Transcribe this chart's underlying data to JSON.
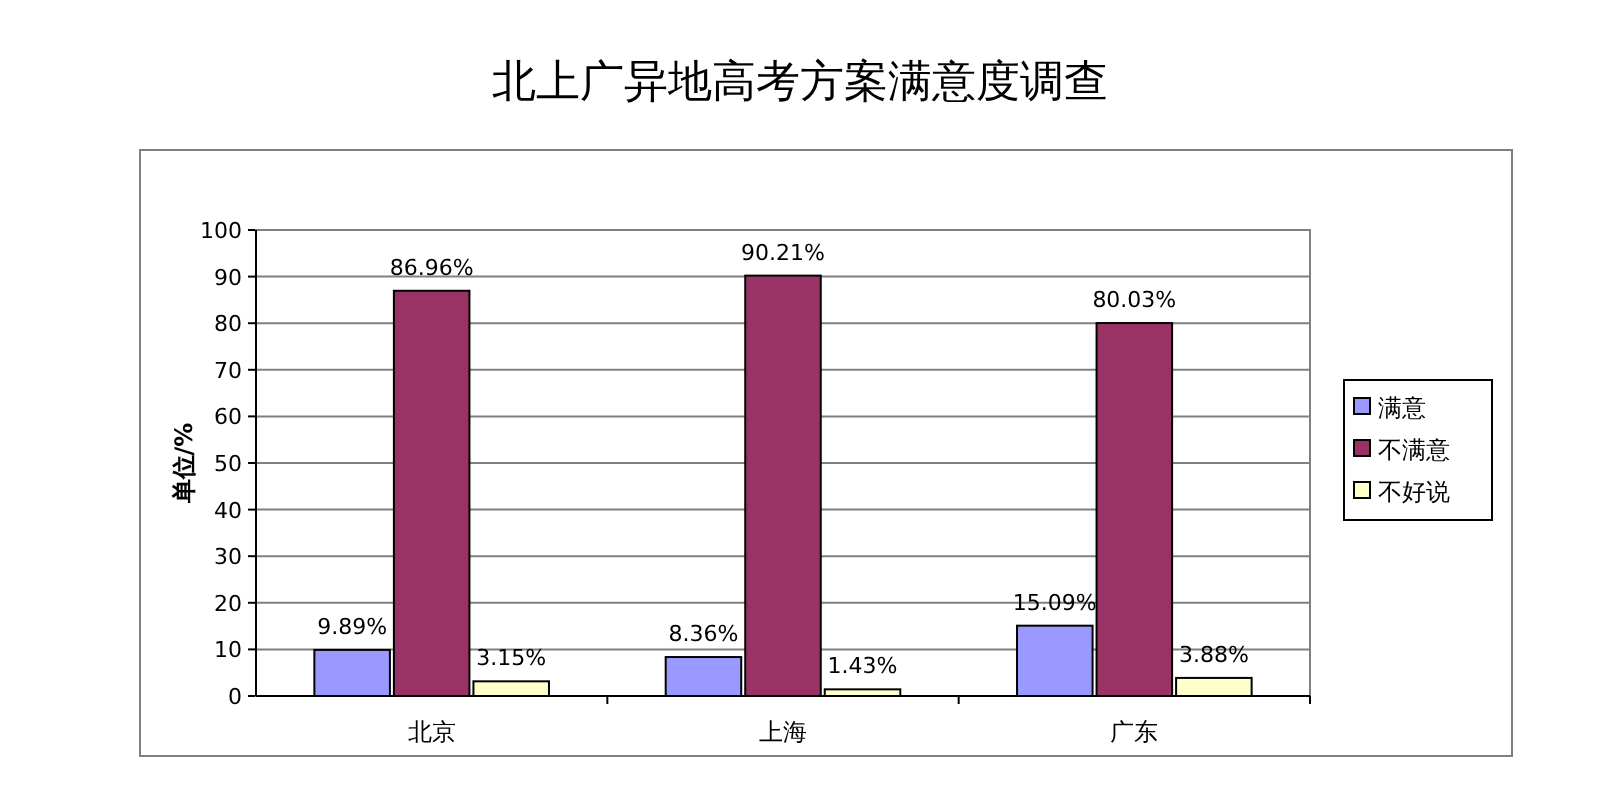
{
  "chart_data": {
    "type": "bar",
    "title": "北上广异地高考方案满意度调查",
    "ylabel": "单位/%",
    "categories": [
      "北京",
      "上海",
      "广东"
    ],
    "series": [
      {
        "name": "满意",
        "color": "#9999ff",
        "values": [
          9.89,
          8.36,
          15.09
        ],
        "value_labels": [
          "9.89%",
          "8.36%",
          "15.09%"
        ]
      },
      {
        "name": "不满意",
        "color": "#993366",
        "values": [
          86.96,
          90.21,
          80.03
        ],
        "value_labels": [
          "86.96%",
          "90.21%",
          "80.03%"
        ]
      },
      {
        "name": "不好说",
        "color": "#ffffcc",
        "values": [
          3.15,
          1.43,
          3.88
        ],
        "value_labels": [
          "3.15%",
          "1.43%",
          "3.88%"
        ]
      }
    ],
    "ylim": [
      0,
      100
    ],
    "yticks": [
      0,
      10,
      20,
      30,
      40,
      50,
      60,
      70,
      80,
      90,
      100
    ],
    "grid": "y",
    "legend": "right"
  }
}
